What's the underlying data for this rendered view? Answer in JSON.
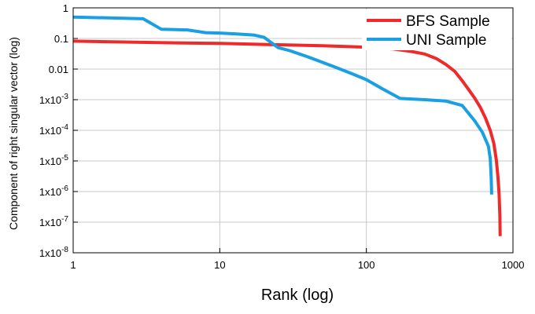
{
  "chart_data": {
    "type": "line",
    "title": "",
    "xlabel": "Rank (log)",
    "ylabel": "Component of right singular vector (log)",
    "x_scale": "log",
    "y_scale": "log",
    "xlim": [
      1,
      1000
    ],
    "ylim": [
      1e-08,
      1
    ],
    "grid": true,
    "legend_position": "top-right",
    "x_ticks": [
      {
        "value": 1,
        "label": "1"
      },
      {
        "value": 10,
        "label": "10"
      },
      {
        "value": 100,
        "label": "100"
      },
      {
        "value": 1000,
        "label": "1000"
      }
    ],
    "y_ticks": [
      {
        "value": 1,
        "base": "1",
        "exp": ""
      },
      {
        "value": 0.1,
        "base": "0.1",
        "exp": ""
      },
      {
        "value": 0.01,
        "base": "0.01",
        "exp": ""
      },
      {
        "value": 0.001,
        "base": "1x10",
        "exp": "-3"
      },
      {
        "value": 0.0001,
        "base": "1x10",
        "exp": "-4"
      },
      {
        "value": 1e-05,
        "base": "1x10",
        "exp": "-5"
      },
      {
        "value": 1e-06,
        "base": "1x10",
        "exp": "-6"
      },
      {
        "value": 1e-07,
        "base": "1x10",
        "exp": "-7"
      },
      {
        "value": 1e-08,
        "base": "1x10",
        "exp": "-8"
      }
    ],
    "series": [
      {
        "name": "BFS Sample",
        "color": "#ee2a2a",
        "points": [
          [
            1,
            0.082
          ],
          [
            2,
            0.077
          ],
          [
            5,
            0.072
          ],
          [
            10,
            0.069
          ],
          [
            20,
            0.064
          ],
          [
            50,
            0.058
          ],
          [
            100,
            0.052
          ],
          [
            150,
            0.046
          ],
          [
            200,
            0.038
          ],
          [
            250,
            0.031
          ],
          [
            300,
            0.022
          ],
          [
            350,
            0.014
          ],
          [
            400,
            0.0085
          ],
          [
            450,
            0.0042
          ],
          [
            500,
            0.0021
          ],
          [
            550,
            0.0011
          ],
          [
            600,
            0.00055
          ],
          [
            650,
            0.00025
          ],
          [
            700,
            0.0001
          ],
          [
            740,
            3.8e-05
          ],
          [
            770,
            1.1e-05
          ],
          [
            790,
            3e-06
          ],
          [
            805,
            8e-07
          ],
          [
            815,
            1.5e-07
          ],
          [
            818,
            3.5e-08
          ]
        ]
      },
      {
        "name": "UNI Sample",
        "color": "#1a9fe3",
        "points": [
          [
            1,
            0.5
          ],
          [
            3,
            0.44
          ],
          [
            4,
            0.2
          ],
          [
            6,
            0.19
          ],
          [
            8,
            0.155
          ],
          [
            10,
            0.15
          ],
          [
            13,
            0.14
          ],
          [
            17,
            0.13
          ],
          [
            20,
            0.11
          ],
          [
            25,
            0.05
          ],
          [
            30,
            0.04
          ],
          [
            40,
            0.025
          ],
          [
            60,
            0.012
          ],
          [
            80,
            0.007
          ],
          [
            100,
            0.0045
          ],
          [
            130,
            0.0022
          ],
          [
            170,
            0.0011
          ],
          [
            250,
            0.001
          ],
          [
            350,
            0.0009
          ],
          [
            450,
            0.00065
          ],
          [
            550,
            0.0002
          ],
          [
            620,
            8.5e-05
          ],
          [
            680,
            3e-05
          ],
          [
            700,
            1.2e-05
          ],
          [
            710,
            3e-06
          ],
          [
            715,
            8e-07
          ]
        ]
      }
    ]
  }
}
